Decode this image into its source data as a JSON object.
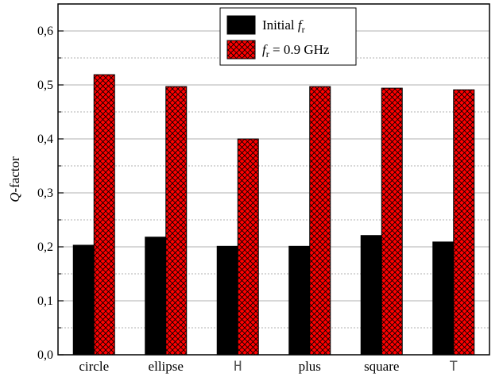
{
  "chart_data": {
    "type": "bar",
    "title": "",
    "xlabel": "",
    "ylabel": {
      "italic": "Q",
      "rest": "-factor"
    },
    "categories": [
      "circle",
      "ellipse",
      "H",
      "plus",
      "square",
      "T"
    ],
    "series": [
      {
        "name": {
          "text": "Initial ",
          "italic": "f",
          "sub": "r"
        },
        "color": "#000000",
        "pattern": "solid",
        "values": [
          0.203,
          0.218,
          0.201,
          0.201,
          0.221,
          0.209
        ]
      },
      {
        "name": {
          "text": " = 0.9 GHz",
          "italic": "f",
          "sub": "r"
        },
        "color": "#ff0000",
        "pattern": "crosshatch",
        "values": [
          0.519,
          0.497,
          0.4,
          0.497,
          0.494,
          0.491
        ]
      }
    ],
    "ylim": [
      0,
      0.65
    ],
    "yticks": [
      "0,0",
      "0,1",
      "0,2",
      "0,3",
      "0,4",
      "0,5",
      "0,6"
    ],
    "grid": true,
    "legend_position": "top-center"
  }
}
